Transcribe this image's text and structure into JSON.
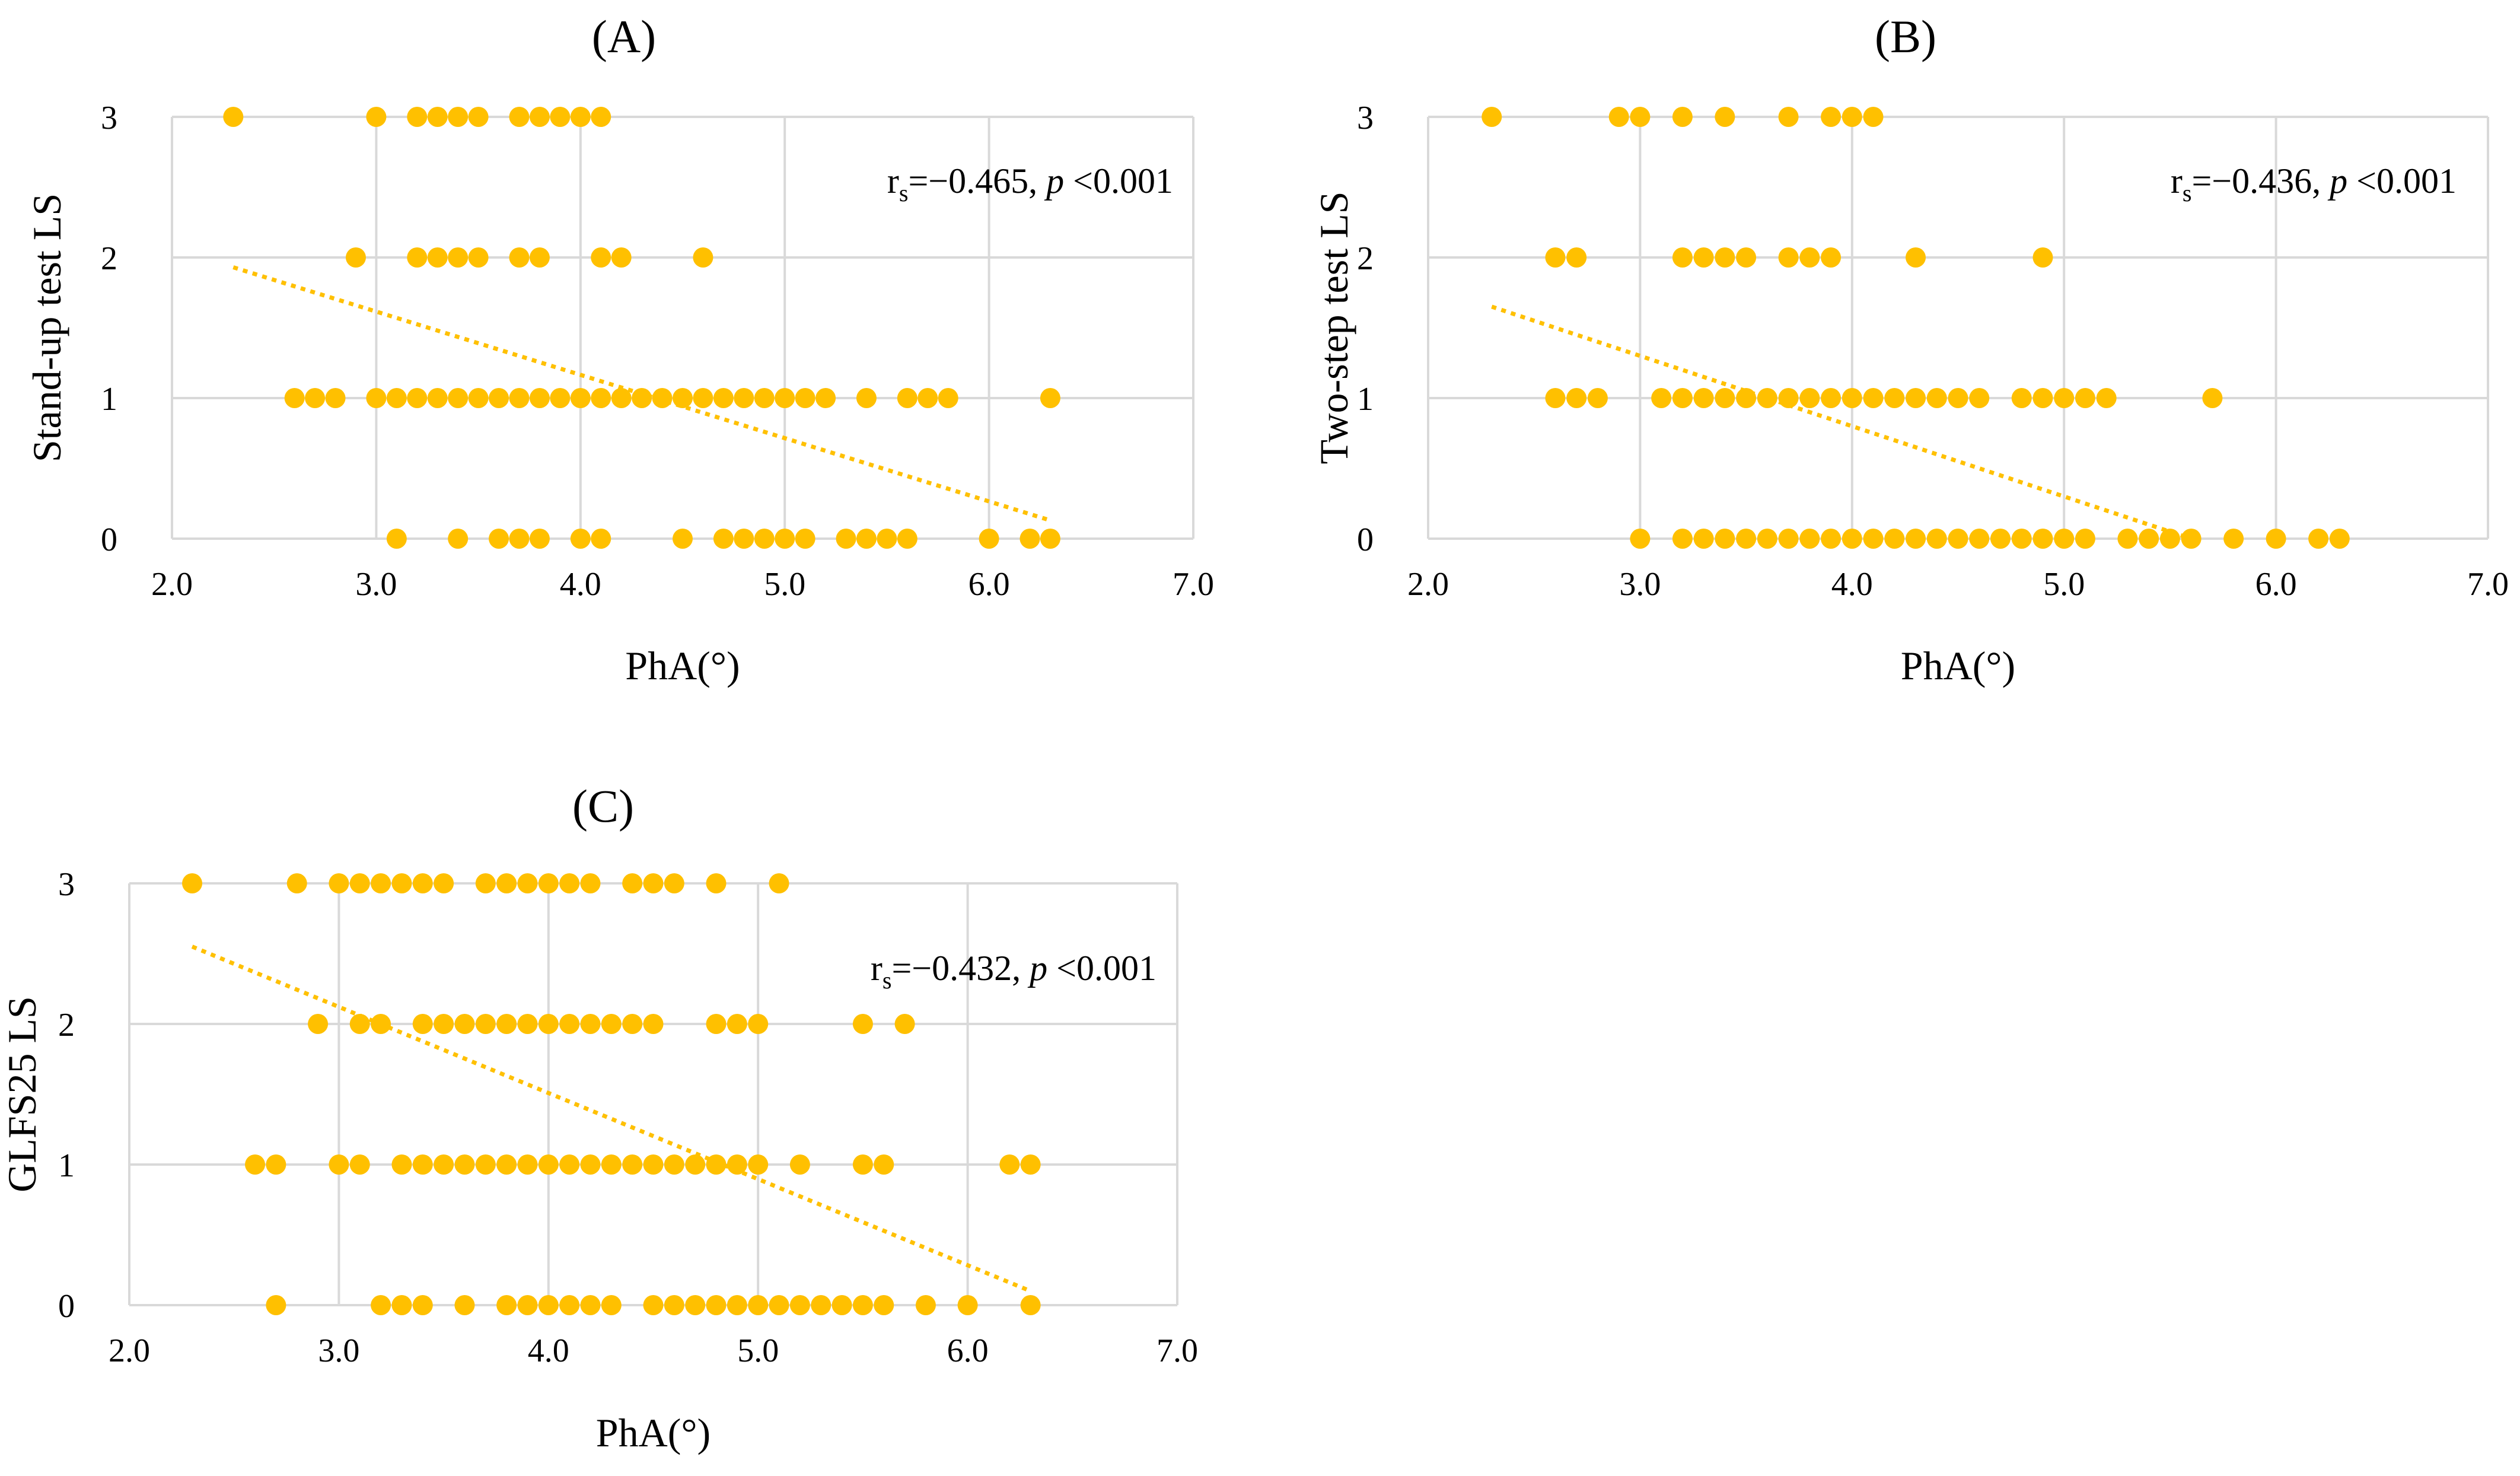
{
  "chart_data": [
    {
      "id": "A",
      "type": "scatter",
      "title": "(A)",
      "xlabel": "PhA(°)",
      "ylabel": "Stand-up test LS",
      "xlim": [
        2.0,
        7.0
      ],
      "ylim": [
        0,
        3
      ],
      "xticks": [
        "2.0",
        "3.0",
        "4.0",
        "5.0",
        "6.0",
        "7.0"
      ],
      "yticks": [
        "0",
        "1",
        "2",
        "3"
      ],
      "grid": true,
      "annotation": {
        "r_symbol": "r",
        "r_sub": "s",
        "r_text": "=−0.465, ",
        "p_symbol": "p",
        "p_text": " <0.001"
      },
      "trendline": {
        "x": [
          2.3,
          6.3
        ],
        "y": [
          1.93,
          0.13
        ]
      },
      "marker_color": "#FFC000",
      "trend_color": "#FFC000",
      "points": [
        [
          2.3,
          3
        ],
        [
          3.0,
          3
        ],
        [
          3.2,
          3
        ],
        [
          3.3,
          3
        ],
        [
          3.4,
          3
        ],
        [
          3.5,
          3
        ],
        [
          3.7,
          3
        ],
        [
          3.8,
          3
        ],
        [
          3.9,
          3
        ],
        [
          4.0,
          3
        ],
        [
          4.1,
          3
        ],
        [
          2.9,
          2
        ],
        [
          3.2,
          2
        ],
        [
          3.3,
          2
        ],
        [
          3.4,
          2
        ],
        [
          3.5,
          2
        ],
        [
          3.7,
          2
        ],
        [
          3.8,
          2
        ],
        [
          4.1,
          2
        ],
        [
          4.2,
          2
        ],
        [
          4.6,
          2
        ],
        [
          2.6,
          1
        ],
        [
          2.7,
          1
        ],
        [
          2.8,
          1
        ],
        [
          3.0,
          1
        ],
        [
          3.1,
          1
        ],
        [
          3.2,
          1
        ],
        [
          3.3,
          1
        ],
        [
          3.4,
          1
        ],
        [
          3.5,
          1
        ],
        [
          3.6,
          1
        ],
        [
          3.7,
          1
        ],
        [
          3.8,
          1
        ],
        [
          3.9,
          1
        ],
        [
          4.0,
          1
        ],
        [
          4.1,
          1
        ],
        [
          4.2,
          1
        ],
        [
          4.3,
          1
        ],
        [
          4.4,
          1
        ],
        [
          4.5,
          1
        ],
        [
          4.6,
          1
        ],
        [
          4.7,
          1
        ],
        [
          4.8,
          1
        ],
        [
          4.9,
          1
        ],
        [
          5.0,
          1
        ],
        [
          5.1,
          1
        ],
        [
          5.2,
          1
        ],
        [
          5.4,
          1
        ],
        [
          5.6,
          1
        ],
        [
          5.7,
          1
        ],
        [
          5.8,
          1
        ],
        [
          6.3,
          1
        ],
        [
          3.1,
          0
        ],
        [
          3.4,
          0
        ],
        [
          3.6,
          0
        ],
        [
          3.7,
          0
        ],
        [
          3.8,
          0
        ],
        [
          4.0,
          0
        ],
        [
          4.1,
          0
        ],
        [
          4.5,
          0
        ],
        [
          4.7,
          0
        ],
        [
          4.8,
          0
        ],
        [
          4.9,
          0
        ],
        [
          5.0,
          0
        ],
        [
          5.1,
          0
        ],
        [
          5.3,
          0
        ],
        [
          5.4,
          0
        ],
        [
          5.5,
          0
        ],
        [
          5.6,
          0
        ],
        [
          6.0,
          0
        ],
        [
          6.2,
          0
        ],
        [
          6.3,
          0
        ]
      ]
    },
    {
      "id": "B",
      "type": "scatter",
      "title": "(B)",
      "xlabel": "PhA(°)",
      "ylabel": "Two-step test LS",
      "xlim": [
        2.0,
        7.0
      ],
      "ylim": [
        0,
        3
      ],
      "xticks": [
        "2.0",
        "3.0",
        "4.0",
        "5.0",
        "6.0",
        "7.0"
      ],
      "yticks": [
        "0",
        "1",
        "2",
        "3"
      ],
      "grid": true,
      "annotation": {
        "r_symbol": "r",
        "r_sub": "s",
        "r_text": "=−0.436, ",
        "p_symbol": "p",
        "p_text": " <0.001"
      },
      "trendline": {
        "x": [
          2.3,
          5.6
        ],
        "y": [
          1.65,
          0.0
        ]
      },
      "marker_color": "#FFC000",
      "trend_color": "#FFC000",
      "points": [
        [
          2.3,
          3
        ],
        [
          2.9,
          3
        ],
        [
          3.0,
          3
        ],
        [
          3.2,
          3
        ],
        [
          3.4,
          3
        ],
        [
          3.7,
          3
        ],
        [
          3.9,
          3
        ],
        [
          4.0,
          3
        ],
        [
          4.1,
          3
        ],
        [
          2.6,
          2
        ],
        [
          2.7,
          2
        ],
        [
          3.2,
          2
        ],
        [
          3.3,
          2
        ],
        [
          3.4,
          2
        ],
        [
          3.5,
          2
        ],
        [
          3.7,
          2
        ],
        [
          3.8,
          2
        ],
        [
          3.9,
          2
        ],
        [
          4.3,
          2
        ],
        [
          4.9,
          2
        ],
        [
          2.6,
          1
        ],
        [
          2.7,
          1
        ],
        [
          2.8,
          1
        ],
        [
          3.1,
          1
        ],
        [
          3.2,
          1
        ],
        [
          3.3,
          1
        ],
        [
          3.4,
          1
        ],
        [
          3.5,
          1
        ],
        [
          3.6,
          1
        ],
        [
          3.7,
          1
        ],
        [
          3.8,
          1
        ],
        [
          3.9,
          1
        ],
        [
          4.0,
          1
        ],
        [
          4.1,
          1
        ],
        [
          4.2,
          1
        ],
        [
          4.3,
          1
        ],
        [
          4.4,
          1
        ],
        [
          4.5,
          1
        ],
        [
          4.6,
          1
        ],
        [
          4.8,
          1
        ],
        [
          4.9,
          1
        ],
        [
          5.0,
          1
        ],
        [
          5.1,
          1
        ],
        [
          5.2,
          1
        ],
        [
          5.7,
          1
        ],
        [
          3.0,
          0
        ],
        [
          3.2,
          0
        ],
        [
          3.3,
          0
        ],
        [
          3.4,
          0
        ],
        [
          3.5,
          0
        ],
        [
          3.6,
          0
        ],
        [
          3.7,
          0
        ],
        [
          3.8,
          0
        ],
        [
          3.9,
          0
        ],
        [
          4.0,
          0
        ],
        [
          4.1,
          0
        ],
        [
          4.2,
          0
        ],
        [
          4.3,
          0
        ],
        [
          4.4,
          0
        ],
        [
          4.5,
          0
        ],
        [
          4.6,
          0
        ],
        [
          4.7,
          0
        ],
        [
          4.8,
          0
        ],
        [
          4.9,
          0
        ],
        [
          5.0,
          0
        ],
        [
          5.1,
          0
        ],
        [
          5.3,
          0
        ],
        [
          5.4,
          0
        ],
        [
          5.5,
          0
        ],
        [
          5.6,
          0
        ],
        [
          5.8,
          0
        ],
        [
          6.0,
          0
        ],
        [
          6.2,
          0
        ],
        [
          6.3,
          0
        ]
      ]
    },
    {
      "id": "C",
      "type": "scatter",
      "title": "(C)",
      "xlabel": "PhA(°)",
      "ylabel": "GLFS25 LS",
      "xlim": [
        2.0,
        7.0
      ],
      "ylim": [
        0,
        3
      ],
      "xticks": [
        "2.0",
        "3.0",
        "4.0",
        "5.0",
        "6.0",
        "7.0"
      ],
      "yticks": [
        "0",
        "1",
        "2",
        "3"
      ],
      "grid": true,
      "annotation": {
        "r_symbol": "r",
        "r_sub": "s",
        "r_text": "=−0.432, ",
        "p_symbol": "p",
        "p_text": " <0.001"
      },
      "trendline": {
        "x": [
          2.3,
          6.3
        ],
        "y": [
          2.55,
          0.1
        ]
      },
      "marker_color": "#FFC000",
      "trend_color": "#FFC000",
      "points": [
        [
          2.3,
          3
        ],
        [
          2.8,
          3
        ],
        [
          3.0,
          3
        ],
        [
          3.1,
          3
        ],
        [
          3.2,
          3
        ],
        [
          3.3,
          3
        ],
        [
          3.4,
          3
        ],
        [
          3.5,
          3
        ],
        [
          3.7,
          3
        ],
        [
          3.8,
          3
        ],
        [
          3.9,
          3
        ],
        [
          4.0,
          3
        ],
        [
          4.1,
          3
        ],
        [
          4.2,
          3
        ],
        [
          4.4,
          3
        ],
        [
          4.5,
          3
        ],
        [
          4.6,
          3
        ],
        [
          4.8,
          3
        ],
        [
          5.1,
          3
        ],
        [
          2.9,
          2
        ],
        [
          3.1,
          2
        ],
        [
          3.2,
          2
        ],
        [
          3.4,
          2
        ],
        [
          3.5,
          2
        ],
        [
          3.6,
          2
        ],
        [
          3.7,
          2
        ],
        [
          3.8,
          2
        ],
        [
          3.9,
          2
        ],
        [
          4.0,
          2
        ],
        [
          4.1,
          2
        ],
        [
          4.2,
          2
        ],
        [
          4.3,
          2
        ],
        [
          4.4,
          2
        ],
        [
          4.5,
          2
        ],
        [
          4.8,
          2
        ],
        [
          4.9,
          2
        ],
        [
          5.0,
          2
        ],
        [
          5.5,
          2
        ],
        [
          5.7,
          2
        ],
        [
          2.6,
          1
        ],
        [
          2.7,
          1
        ],
        [
          3.0,
          1
        ],
        [
          3.1,
          1
        ],
        [
          3.3,
          1
        ],
        [
          3.4,
          1
        ],
        [
          3.5,
          1
        ],
        [
          3.6,
          1
        ],
        [
          3.7,
          1
        ],
        [
          3.8,
          1
        ],
        [
          3.9,
          1
        ],
        [
          4.0,
          1
        ],
        [
          4.1,
          1
        ],
        [
          4.2,
          1
        ],
        [
          4.3,
          1
        ],
        [
          4.4,
          1
        ],
        [
          4.5,
          1
        ],
        [
          4.6,
          1
        ],
        [
          4.7,
          1
        ],
        [
          4.8,
          1
        ],
        [
          4.9,
          1
        ],
        [
          5.0,
          1
        ],
        [
          5.2,
          1
        ],
        [
          5.5,
          1
        ],
        [
          5.6,
          1
        ],
        [
          6.2,
          1
        ],
        [
          6.3,
          1
        ],
        [
          2.7,
          0
        ],
        [
          3.2,
          0
        ],
        [
          3.3,
          0
        ],
        [
          3.4,
          0
        ],
        [
          3.6,
          0
        ],
        [
          3.8,
          0
        ],
        [
          3.9,
          0
        ],
        [
          4.0,
          0
        ],
        [
          4.1,
          0
        ],
        [
          4.2,
          0
        ],
        [
          4.3,
          0
        ],
        [
          4.5,
          0
        ],
        [
          4.6,
          0
        ],
        [
          4.7,
          0
        ],
        [
          4.8,
          0
        ],
        [
          4.9,
          0
        ],
        [
          5.0,
          0
        ],
        [
          5.1,
          0
        ],
        [
          5.2,
          0
        ],
        [
          5.3,
          0
        ],
        [
          5.4,
          0
        ],
        [
          5.5,
          0
        ],
        [
          5.6,
          0
        ],
        [
          5.8,
          0
        ],
        [
          6.0,
          0
        ],
        [
          6.3,
          0
        ]
      ]
    }
  ]
}
